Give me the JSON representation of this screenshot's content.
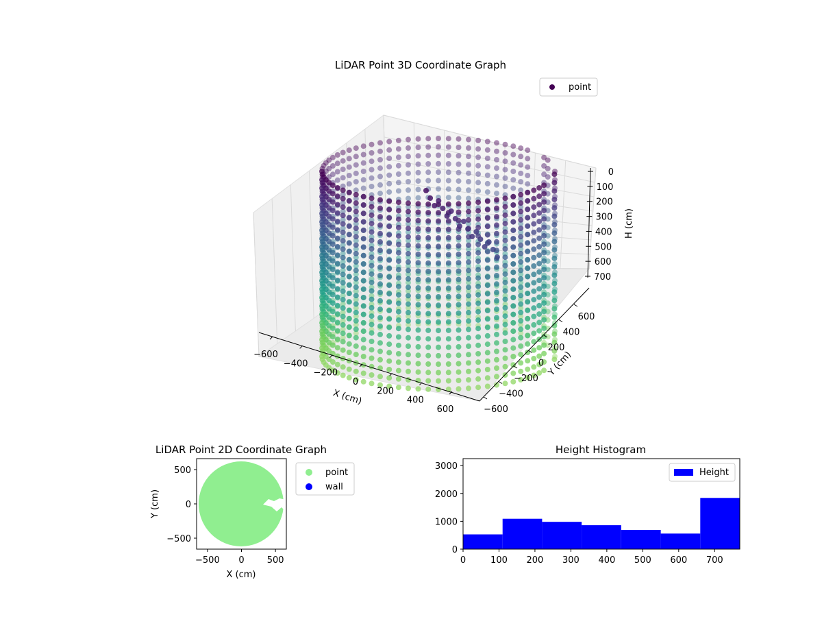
{
  "chart_data": [
    {
      "type": "scatter",
      "projection": "3d",
      "title": "LiDAR Point 3D Coordinate Graph",
      "xlabel": "X (cm)",
      "ylabel": "Y (cm)",
      "zlabel": "H (cm)",
      "xlim": [
        -650,
        650
      ],
      "ylim": [
        -650,
        650
      ],
      "zlim": [
        770,
        0
      ],
      "z_inverted": true,
      "x_ticks": [
        "−600",
        "−400",
        "−200",
        "0",
        "200",
        "400",
        "600"
      ],
      "y_ticks": [
        "−600",
        "−400",
        "−200",
        "0",
        "200",
        "400",
        "600"
      ],
      "z_ticks": [
        "0",
        "100",
        "200",
        "300",
        "400",
        "500",
        "600",
        "700"
      ],
      "legend": [
        "point"
      ],
      "legend_position": "upper-right",
      "colormap": "viridis",
      "series": [
        {
          "name": "point",
          "shape": "cylindrical wall",
          "radius": 560,
          "height_range": [
            0,
            770
          ],
          "color_by": "height",
          "notes_gap_angle_range": [
            -40,
            25
          ]
        }
      ],
      "grid": true
    },
    {
      "type": "scatter",
      "title": "LiDAR Point 2D Coordinate Graph",
      "xlabel": "X (cm)",
      "ylabel": "Y (cm)",
      "xlim": [
        -660,
        660
      ],
      "ylim": [
        -660,
        660
      ],
      "x_ticks": [
        "−500",
        "0",
        "500"
      ],
      "y_ticks": [
        "500",
        "0",
        "−500"
      ],
      "legend": [
        "point",
        "wall"
      ],
      "legend_position": "outside-right",
      "series": [
        {
          "name": "point",
          "color": "#90ee90",
          "shape": "filled disk",
          "radius": 620
        },
        {
          "name": "wall",
          "color": "#0000ff"
        }
      ]
    },
    {
      "type": "bar",
      "subtype": "histogram",
      "title": "Height Histogram",
      "xlim": [
        0,
        770
      ],
      "ylim": [
        0,
        3250
      ],
      "x_ticks": [
        "0",
        "100",
        "200",
        "300",
        "400",
        "500",
        "600",
        "700"
      ],
      "y_ticks": [
        "0",
        "1000",
        "2000",
        "3000"
      ],
      "bin_edges": [
        0,
        110,
        220,
        330,
        440,
        550,
        660,
        770
      ],
      "values": [
        530,
        1090,
        980,
        860,
        690,
        560,
        1840
      ],
      "series": [
        {
          "name": "Height",
          "color": "#0000ff"
        }
      ],
      "legend": [
        "Height"
      ],
      "legend_position": "upper-right"
    }
  ]
}
